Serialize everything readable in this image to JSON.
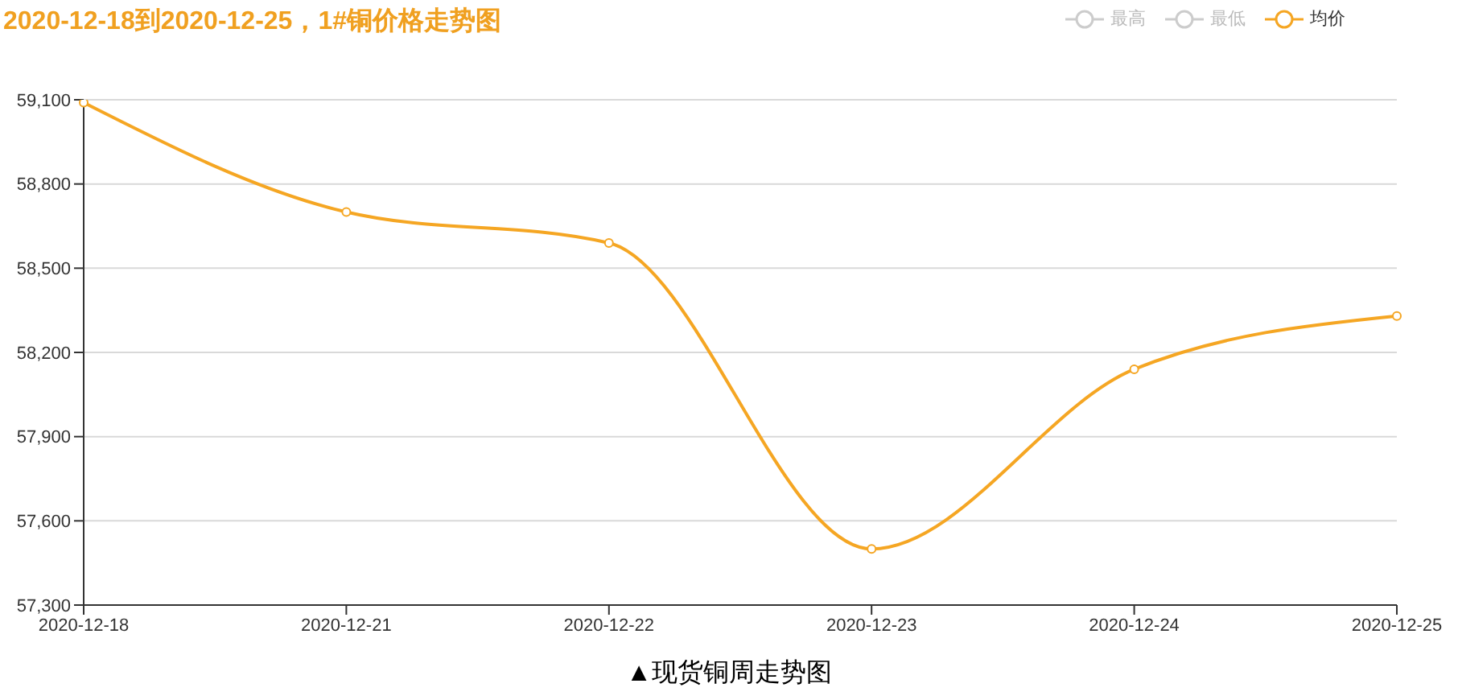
{
  "chart_data": {
    "type": "line",
    "title": "2020-12-18到2020-12-25，1#铜价格走势图",
    "categories": [
      "2020-12-18",
      "2020-12-21",
      "2020-12-22",
      "2020-12-23",
      "2020-12-24",
      "2020-12-25"
    ],
    "series": [
      {
        "name": "最高",
        "color": "#cccccc",
        "values": [
          null,
          null,
          null,
          null,
          null,
          null
        ]
      },
      {
        "name": "最低",
        "color": "#cccccc",
        "values": [
          null,
          null,
          null,
          null,
          null,
          null
        ]
      },
      {
        "name": "均价",
        "color": "#f5a623",
        "values": [
          59090,
          58700,
          58590,
          57500,
          58140,
          58330
        ]
      }
    ],
    "ylim": [
      57300,
      59100
    ],
    "yticks": [
      {
        "value": 57300,
        "label": "57,300"
      },
      {
        "value": 57600,
        "label": "57,600"
      },
      {
        "value": 57900,
        "label": "57,900"
      },
      {
        "value": 58200,
        "label": "58,200"
      },
      {
        "value": 58500,
        "label": "58,500"
      },
      {
        "value": 58800,
        "label": "58,800"
      },
      {
        "value": 59100,
        "label": "59,100"
      }
    ],
    "grid": "y",
    "legend": "top right",
    "marker": "circle",
    "line_style": "solid",
    "annotations": [
      "▲现货铜周走势图"
    ]
  }
}
